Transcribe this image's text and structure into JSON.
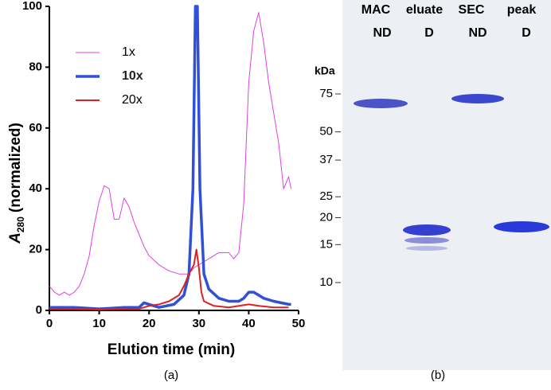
{
  "chart_data": {
    "type": "line",
    "xlabel": "Elution time (min)",
    "ylabel": {
      "main": "A",
      "sub": "280",
      "rest": "(normalized)"
    },
    "xlim": [
      0,
      50
    ],
    "xticks": [
      0,
      10,
      20,
      30,
      40,
      50
    ],
    "ylim": [
      0,
      100
    ],
    "yticks": [
      0,
      20,
      40,
      60,
      80,
      100
    ],
    "legend": "upper left",
    "series": [
      {
        "name": "1x",
        "color": "#e040e0",
        "line_width": 1,
        "x": [
          0,
          1,
          2,
          3,
          4,
          5,
          6,
          7,
          8,
          9,
          10,
          11,
          12,
          13,
          14,
          15,
          16,
          17,
          18,
          19,
          20,
          22,
          24,
          26,
          28,
          29,
          30,
          32,
          34,
          36,
          37,
          38,
          39,
          40,
          41,
          42,
          43,
          44,
          45,
          46,
          47,
          48,
          48.5
        ],
        "values": [
          8,
          6,
          5,
          6,
          5,
          6,
          8,
          12,
          18,
          28,
          36,
          41,
          40,
          30,
          30,
          37,
          34,
          29,
          25,
          21,
          18,
          15,
          13,
          12,
          12,
          14,
          15,
          17,
          19,
          19,
          17,
          19,
          35,
          75,
          92,
          98,
          88,
          75,
          65,
          55,
          40,
          44,
          40
        ]
      },
      {
        "name": "10x",
        "color": "#3050d8",
        "line_width": 3.5,
        "x": [
          0,
          5,
          10,
          15,
          18,
          19,
          20,
          22,
          25,
          27,
          28,
          28.8,
          29.3,
          29.7,
          30.2,
          31,
          32,
          34,
          36,
          38,
          39,
          40,
          41,
          42,
          43,
          45,
          48,
          48.5
        ],
        "values": [
          1,
          1,
          0.5,
          1,
          1,
          2.5,
          2,
          1,
          2,
          5,
          12,
          40,
          100,
          100,
          40,
          12,
          7,
          4,
          3,
          3,
          4,
          6,
          6,
          5,
          4,
          3,
          2,
          2
        ]
      },
      {
        "name": "20x",
        "color": "#e02020",
        "line_width": 2,
        "x": [
          0,
          10,
          18,
          20,
          22,
          24,
          26,
          27,
          28,
          29,
          29.5,
          30,
          30.5,
          31,
          33,
          36,
          40,
          42,
          45,
          48
        ],
        "values": [
          0.5,
          0.3,
          0.5,
          1.5,
          2,
          3,
          5,
          8,
          12,
          15,
          20,
          14,
          6,
          3,
          1.5,
          1,
          2,
          1.5,
          1,
          1
        ]
      }
    ]
  },
  "panel_labels": [
    "(a)",
    "(b)"
  ],
  "gel": {
    "lane_headers": [
      "MAC",
      "eluate",
      "SEC",
      "peak"
    ],
    "lane_states": [
      "ND",
      "D",
      "ND",
      "D"
    ],
    "unit": "kDa",
    "markers": [
      75,
      50,
      37,
      25,
      20,
      15,
      10
    ]
  }
}
